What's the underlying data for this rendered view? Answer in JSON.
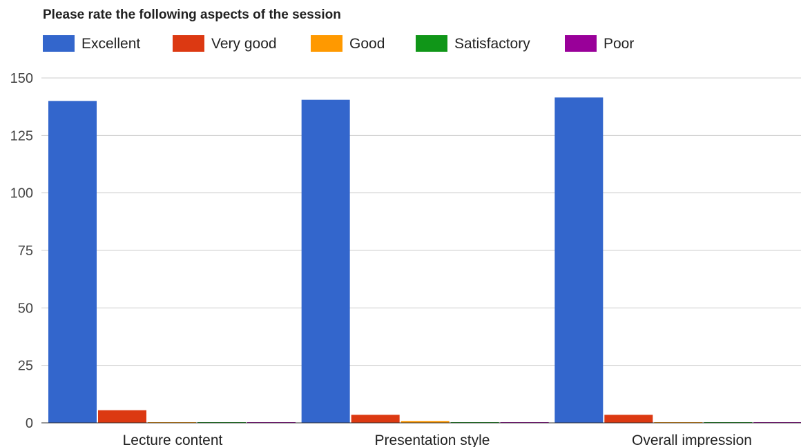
{
  "chart_data": {
    "type": "bar",
    "title": "Please rate the following aspects of the session",
    "categories": [
      "Lecture content",
      "Presentation style",
      "Overall impression"
    ],
    "series": [
      {
        "name": "Excellent",
        "color": "#3366cc",
        "values": [
          140,
          140.5,
          141.5
        ]
      },
      {
        "name": "Very good",
        "color": "#dc3912",
        "values": [
          5.5,
          3.5,
          3.5
        ]
      },
      {
        "name": "Good",
        "color": "#ff9900",
        "values": [
          0.3,
          0.8,
          0.3
        ]
      },
      {
        "name": "Satisfactory",
        "color": "#109618",
        "values": [
          0.3,
          0.3,
          0.3
        ]
      },
      {
        "name": "Poor",
        "color": "#990099",
        "values": [
          0.3,
          0.3,
          0.3
        ]
      }
    ],
    "yticks": [
      0,
      25,
      50,
      75,
      100,
      125,
      150
    ],
    "ylim": [
      0,
      150
    ],
    "grid": true,
    "legend_position": "top"
  }
}
